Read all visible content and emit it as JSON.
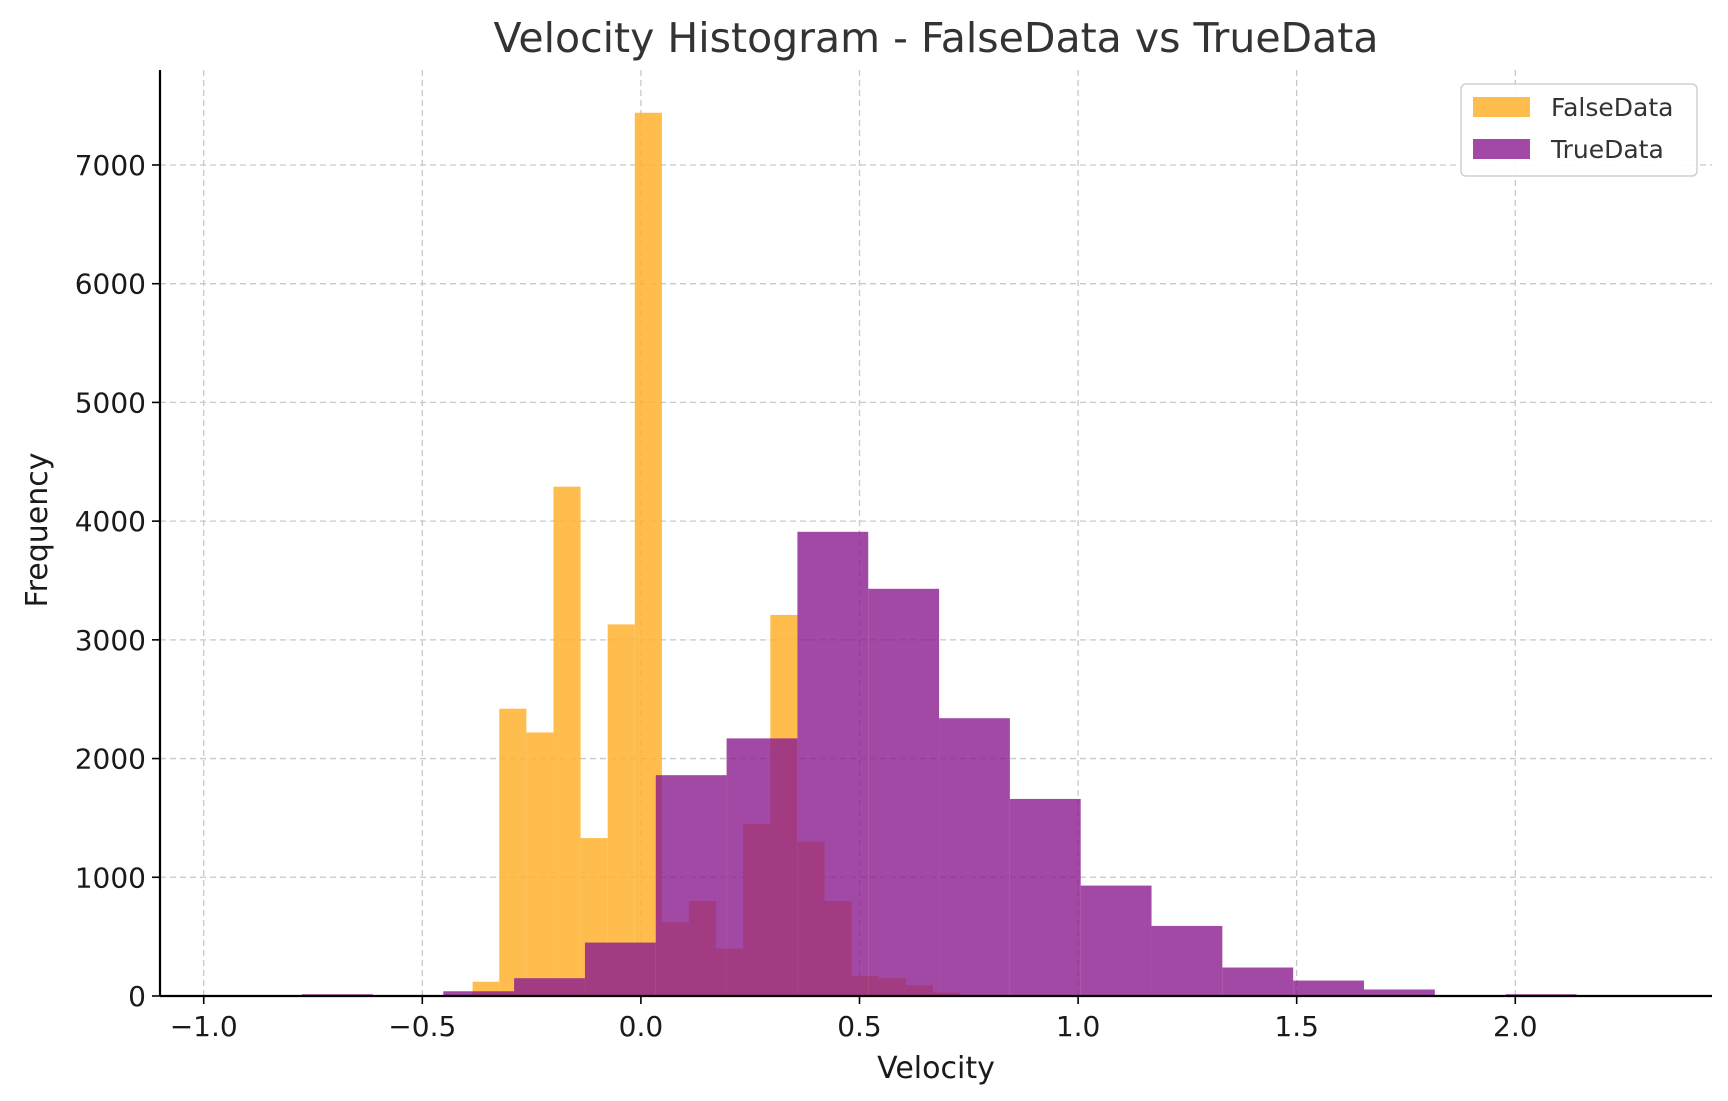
{
  "chart_data": {
    "type": "bar",
    "title": "Velocity Histogram - FalseData vs TrueData",
    "xlabel": "Velocity",
    "ylabel": "Frequency",
    "xlim": [
      -1.1,
      2.45
    ],
    "ylim": [
      0,
      7800
    ],
    "xticks": [
      -1.0,
      -0.5,
      0.0,
      0.5,
      1.0,
      1.5,
      2.0
    ],
    "xtick_labels": [
      "−1.0",
      "−0.5",
      "0.0",
      "0.5",
      "1.0",
      "1.5",
      "2.0"
    ],
    "yticks": [
      0,
      1000,
      2000,
      3000,
      4000,
      5000,
      6000,
      7000
    ],
    "ytick_labels": [
      "0",
      "1000",
      "2000",
      "3000",
      "4000",
      "5000",
      "6000",
      "7000"
    ],
    "grid": true,
    "legend_position": "top-right",
    "series": [
      {
        "name": "FalseData",
        "color": "#ffb12e",
        "opacity": 0.85,
        "bin_edges": [
          -0.385,
          -0.324,
          -0.262,
          -0.2,
          -0.138,
          -0.076,
          -0.014,
          0.048,
          0.11,
          0.172,
          0.234,
          0.296,
          0.358,
          0.42,
          0.482,
          0.544,
          0.606,
          0.668,
          0.73
        ],
        "counts": [
          120,
          2420,
          2220,
          4290,
          1330,
          3130,
          7440,
          620,
          800,
          400,
          1450,
          3210,
          1300,
          800,
          170,
          150,
          90,
          30
        ]
      },
      {
        "name": "TrueData",
        "color": "#8b1a8f",
        "opacity": 0.8,
        "bin_edges": [
          -0.775,
          -0.613,
          -0.452,
          -0.29,
          -0.128,
          0.034,
          0.196,
          0.358,
          0.52,
          0.682,
          0.844,
          1.006,
          1.168,
          1.33,
          1.492,
          1.654,
          1.816,
          1.978,
          2.14
        ],
        "counts": [
          15,
          0,
          40,
          150,
          450,
          1860,
          2170,
          3910,
          3430,
          2340,
          1660,
          930,
          590,
          240,
          130,
          55,
          0,
          15
        ]
      }
    ]
  }
}
